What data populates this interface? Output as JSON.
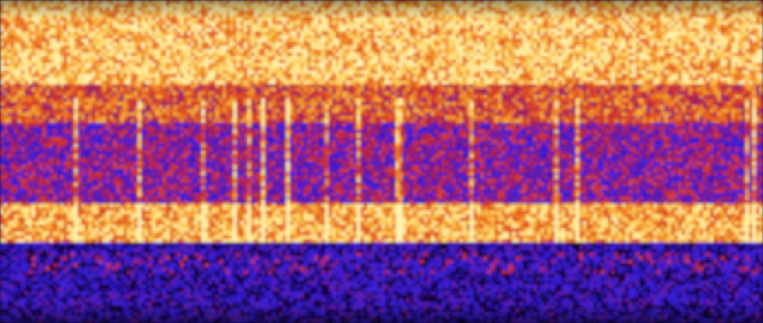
{
  "chart_data": {
    "type": "heatmap",
    "title": "",
    "xlabel": "",
    "ylabel": "",
    "grid": false,
    "legend": "none",
    "colormap": [
      "#14062e",
      "#2a10a8",
      "#3a22e0",
      "#7a1a8a",
      "#c2263a",
      "#e2541c",
      "#f39a2a",
      "#ffd96a",
      "#fff2b0"
    ],
    "frame_color": "#0b0620",
    "bands": [
      {
        "name": "",
        "from": 0.0,
        "to": 0.26,
        "intensity": 0.82
      },
      {
        "name": "",
        "from": 0.26,
        "to": 0.38,
        "intensity": 0.6
      },
      {
        "name": "",
        "from": 0.38,
        "to": 0.62,
        "intensity": 0.38
      },
      {
        "name": "",
        "from": 0.62,
        "to": 0.74,
        "intensity": 0.78
      },
      {
        "name": "",
        "from": 0.74,
        "to": 1.0,
        "intensity": 0.14
      }
    ]
  }
}
